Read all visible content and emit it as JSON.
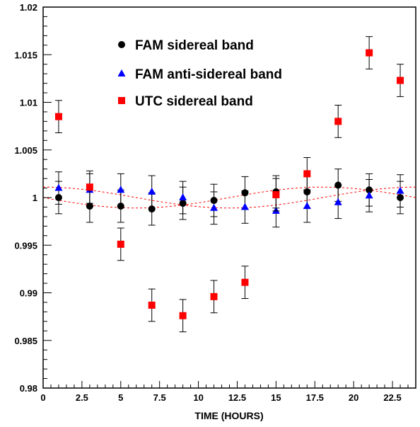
{
  "chart_data": {
    "type": "scatter",
    "title": "",
    "xlabel": "TIME (HOURS)",
    "ylabel": "",
    "xlim": [
      0,
      24
    ],
    "ylim": [
      0.98,
      1.02
    ],
    "x_ticks": [
      0,
      2.5,
      5,
      7.5,
      10,
      12.5,
      15,
      17.5,
      20,
      22.5
    ],
    "x_tick_labels": [
      "0",
      "2.5",
      "5",
      "7.5",
      "10",
      "12.5",
      "15",
      "17.5",
      "20",
      "22.5"
    ],
    "y_ticks": [
      0.98,
      0.985,
      0.99,
      0.995,
      1.0,
      1.005,
      1.01,
      1.015,
      1.02
    ],
    "y_tick_labels": [
      "0.98",
      "0.985",
      "0.99",
      "0.995",
      "1",
      "1.005",
      "1.01",
      "1.015",
      "1.02"
    ],
    "grid": false,
    "legend_position": "top-left",
    "series": [
      {
        "name": "FAM sidereal band",
        "marker": "circle",
        "color": "#000000",
        "x": [
          1,
          3,
          5,
          7,
          9,
          11,
          13,
          15,
          17,
          19,
          21,
          23
        ],
        "y": [
          1.0,
          0.9991,
          0.9991,
          0.9988,
          0.9994,
          0.9997,
          1.0005,
          1.0006,
          1.0006,
          1.0013,
          1.0008,
          1.0
        ],
        "err": [
          0.0017,
          0.0017,
          0.0017,
          0.0017,
          0.0017,
          0.0017,
          0.0017,
          0.0017,
          0.0017,
          0.0017,
          0.0017,
          0.0017
        ]
      },
      {
        "name": "FAM anti-sidereal band",
        "marker": "triangle",
        "color": "#0000ff",
        "x": [
          1,
          3,
          5,
          7,
          9,
          11,
          13,
          15,
          17,
          19,
          21,
          23
        ],
        "y": [
          1.001,
          1.0008,
          1.0008,
          1.0006,
          1.0,
          0.9989,
          0.999,
          0.9986,
          0.9991,
          0.9995,
          1.0002,
          1.0007
        ],
        "err": [
          0.0017,
          0.0017,
          0.0017,
          0.0017,
          0.0017,
          0.0017,
          0.0017,
          0.0017,
          0.0017,
          0.0017,
          0.0017,
          0.0017
        ]
      },
      {
        "name": "UTC sidereal band",
        "marker": "square",
        "color": "#ff0000",
        "x": [
          1,
          3,
          5,
          7,
          9,
          11,
          13,
          15,
          17,
          19,
          21,
          23
        ],
        "y": [
          1.0085,
          1.0011,
          0.9951,
          0.9887,
          0.9876,
          0.9896,
          0.9911,
          1.0003,
          1.0025,
          1.008,
          1.0152,
          1.0123
        ],
        "err": [
          0.0017,
          0.0017,
          0.0017,
          0.0017,
          0.0017,
          0.0017,
          0.0017,
          0.0017,
          0.0017,
          0.0017,
          0.0017,
          0.0017
        ]
      }
    ],
    "fit_curves": [
      {
        "color": "#ff0000",
        "style": "dashed",
        "offset": 1.0,
        "amplitude": 0.0011,
        "period": 24,
        "peak_x": 0
      },
      {
        "color": "#ff0000",
        "style": "dashed",
        "offset": 1.0,
        "amplitude": 0.0011,
        "period": 24,
        "peak_x": 18
      }
    ]
  }
}
